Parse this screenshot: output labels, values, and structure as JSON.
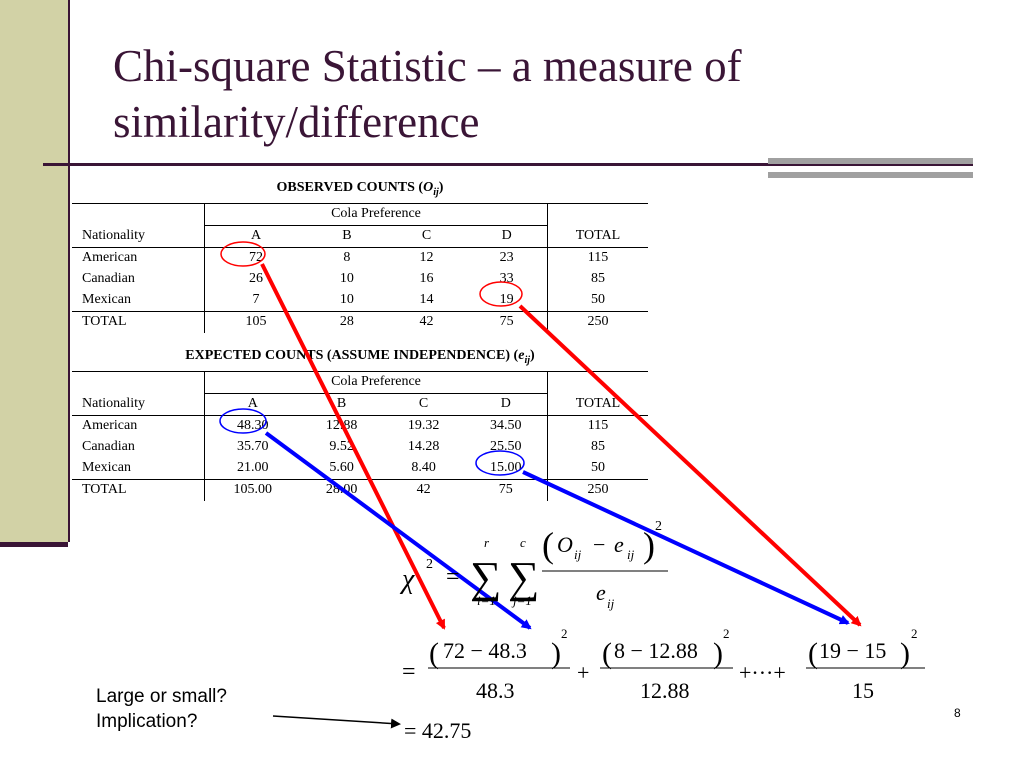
{
  "slide": {
    "title_line1": "Chi-square Statistic – a measure of",
    "title_line2": "similarity/difference",
    "page_number": "8"
  },
  "observed": {
    "caption_prefix": "OBSERVED COUNTS (",
    "caption_symbol": "O",
    "caption_sub": "ij",
    "caption_suffix": ")",
    "group_header": "Cola Preference",
    "row_header": "Nationality",
    "columns": [
      "A",
      "B",
      "C",
      "D"
    ],
    "total_header": "TOTAL",
    "rows": [
      {
        "label": "American",
        "cells": [
          "72",
          "8",
          "12",
          "23"
        ],
        "total": "115"
      },
      {
        "label": "Canadian",
        "cells": [
          "26",
          "10",
          "16",
          "33"
        ],
        "total": "85"
      },
      {
        "label": "Mexican",
        "cells": [
          "7",
          "10",
          "14",
          "19"
        ],
        "total": "50"
      }
    ],
    "total_row": {
      "label": "TOTAL",
      "cells": [
        "105",
        "28",
        "42",
        "75"
      ],
      "total": "250"
    }
  },
  "expected": {
    "caption_prefix": "EXPECTED COUNTS (ASSUME INDEPENDENCE) (",
    "caption_symbol": "e",
    "caption_sub": "ij",
    "caption_suffix": ")",
    "group_header": "Cola Preference",
    "row_header": "Nationality",
    "columns": [
      "A",
      "B",
      "C",
      "D"
    ],
    "total_header": "TOTAL",
    "rows": [
      {
        "label": "American",
        "cells": [
          "48.30",
          "12.88",
          "19.32",
          "34.50"
        ],
        "total": "115"
      },
      {
        "label": "Canadian",
        "cells": [
          "35.70",
          "9.52",
          "14.28",
          "25.50"
        ],
        "total": "85"
      },
      {
        "label": "Mexican",
        "cells": [
          "21.00",
          "5.60",
          "8.40",
          "15.00"
        ],
        "total": "50"
      }
    ],
    "total_row": {
      "label": "TOTAL",
      "cells": [
        "105.00",
        "28.00",
        "42",
        "75"
      ],
      "total": "250"
    }
  },
  "formula": {
    "chi": "χ",
    "sq": "2",
    "eq": "=",
    "sigma": "∑",
    "sum1_top": "r",
    "sum1_bottom": "i=1",
    "sum2_top": "c",
    "sum2_bottom": "j=1",
    "numerator_O": "O",
    "numerator_e": "e",
    "sub_ij": "ij",
    "minus": "−",
    "denominator_e": "e",
    "term1_num": "72 − 48.3",
    "term1_den": "48.3",
    "term2_num": "8 − 12.88",
    "term2_den": "12.88",
    "term3_num": "19 − 15",
    "term3_den": "15",
    "plus": "+",
    "ellipsis_plus": "+···+",
    "result": "= 42.75"
  },
  "question": {
    "line1": "Large or small?",
    "line2": "Implication?"
  },
  "colors": {
    "title": "#3a1536",
    "sidebar": "#d2d2a6",
    "red_arrow": "#ff0000",
    "blue_arrow": "#0000ff"
  }
}
